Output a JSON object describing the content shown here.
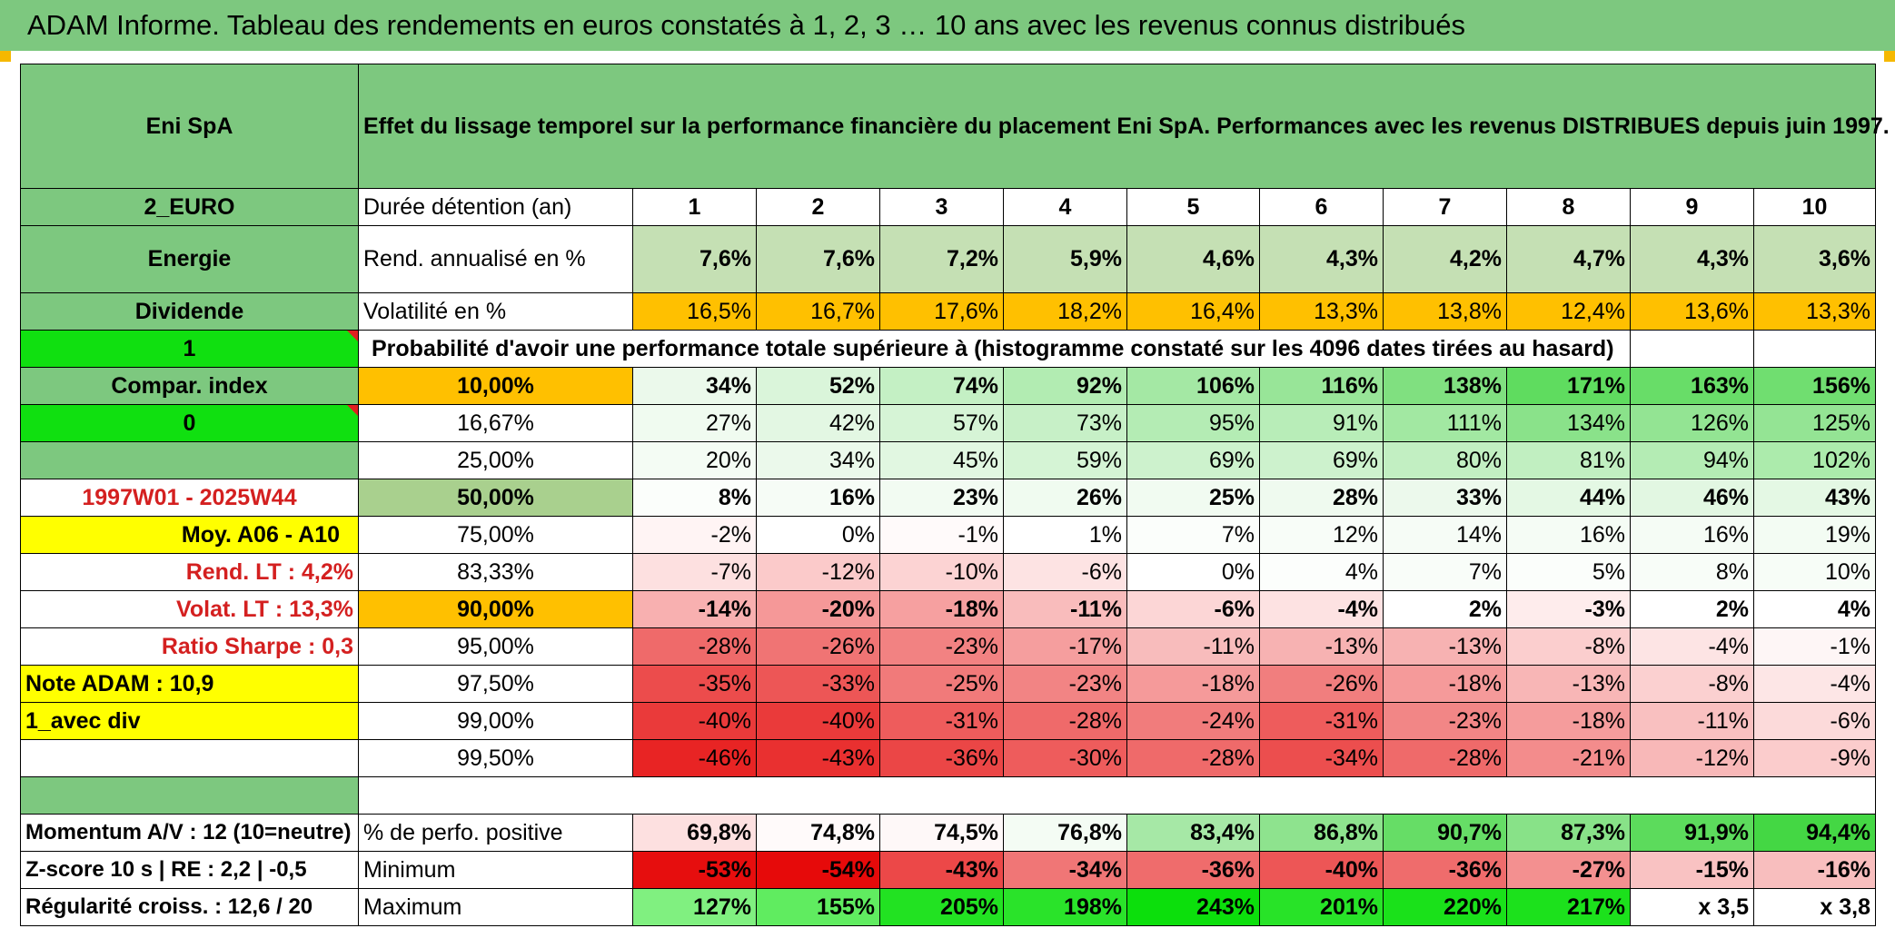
{
  "title": "ADAM Informe. Tableau des rendements en euros constatés à 1, 2, 3 … 10 ans avec les revenus connus distribués",
  "colors": {
    "header_green": "#7dc87f",
    "orange": "#ffc000",
    "yellow": "#ffff00",
    "bright_green": "#10e010",
    "red_text": "#d42020"
  },
  "left": {
    "company": "Eni SpA",
    "currency": "2_EURO",
    "sector": "Energie",
    "dividend": "Dividende",
    "one": "1",
    "compar_index": "Compar. index",
    "zero": "0",
    "period": "1997W01 - 2025W44",
    "moy": "Moy. A06 - A10",
    "rend_lt": "Rend. LT :    4,2%",
    "volat_lt": "Volat. LT :    13,3%",
    "ratio_sharpe": "Ratio Sharpe :    0,3",
    "note_adam": "Note ADAM : 10,9",
    "avec_div": "1_avec div",
    "momentum": "Momentum A/V : 12 (10=neutre)",
    "zscore": "Z-score 10 s | RE : 2,2 | -0,5",
    "regularite": "Régularité croiss. : 12,6 / 20"
  },
  "header_text": "Effet du lissage temporel sur la performance financière du placement Eni SpA. Performances avec les revenus DISTRIBUES depuis juin 1997.",
  "duration_label": "Durée détention (an)",
  "years": [
    "1",
    "2",
    "3",
    "4",
    "5",
    "6",
    "7",
    "8",
    "9",
    "10"
  ],
  "rend_label": "Rend. annualisé en %",
  "rend": [
    "7,6%",
    "7,6%",
    "7,2%",
    "5,9%",
    "4,6%",
    "4,3%",
    "4,2%",
    "4,7%",
    "4,3%",
    "3,6%"
  ],
  "vol_label": "Volatilité en %",
  "vol": [
    "16,5%",
    "16,7%",
    "17,6%",
    "18,2%",
    "16,4%",
    "13,3%",
    "13,8%",
    "12,4%",
    "13,6%",
    "13,3%"
  ],
  "prob_label": "Probabilité d'avoir une performance totale supérieure à (histogramme constaté sur les 4096 dates tirées au hasard)",
  "prob_rows": [
    {
      "label": "10,00%",
      "values": [
        "34%",
        "52%",
        "74%",
        "92%",
        "106%",
        "116%",
        "138%",
        "171%",
        "163%",
        "156%"
      ]
    },
    {
      "label": "16,67%",
      "values": [
        "27%",
        "42%",
        "57%",
        "73%",
        "95%",
        "91%",
        "111%",
        "134%",
        "126%",
        "125%"
      ]
    },
    {
      "label": "25,00%",
      "values": [
        "20%",
        "34%",
        "45%",
        "59%",
        "69%",
        "69%",
        "80%",
        "81%",
        "94%",
        "102%"
      ]
    },
    {
      "label": "50,00%",
      "values": [
        "8%",
        "16%",
        "23%",
        "26%",
        "25%",
        "28%",
        "33%",
        "44%",
        "46%",
        "43%"
      ]
    },
    {
      "label": "75,00%",
      "values": [
        "-2%",
        "0%",
        "-1%",
        "1%",
        "7%",
        "12%",
        "14%",
        "16%",
        "16%",
        "19%"
      ]
    },
    {
      "label": "83,33%",
      "values": [
        "-7%",
        "-12%",
        "-10%",
        "-6%",
        "0%",
        "4%",
        "7%",
        "5%",
        "8%",
        "10%"
      ]
    },
    {
      "label": "90,00%",
      "values": [
        "-14%",
        "-20%",
        "-18%",
        "-11%",
        "-6%",
        "-4%",
        "2%",
        "-3%",
        "2%",
        "4%"
      ]
    },
    {
      "label": "95,00%",
      "values": [
        "-28%",
        "-26%",
        "-23%",
        "-17%",
        "-11%",
        "-13%",
        "-13%",
        "-8%",
        "-4%",
        "-1%"
      ]
    },
    {
      "label": "97,50%",
      "values": [
        "-35%",
        "-33%",
        "-25%",
        "-23%",
        "-18%",
        "-26%",
        "-18%",
        "-13%",
        "-8%",
        "-4%"
      ]
    },
    {
      "label": "99,00%",
      "values": [
        "-40%",
        "-40%",
        "-31%",
        "-28%",
        "-24%",
        "-31%",
        "-23%",
        "-18%",
        "-11%",
        "-6%"
      ]
    },
    {
      "label": "99,50%",
      "values": [
        "-46%",
        "-43%",
        "-36%",
        "-30%",
        "-28%",
        "-34%",
        "-28%",
        "-21%",
        "-12%",
        "-9%"
      ]
    }
  ],
  "pos_label": "% de perfo. positive",
  "pos": [
    "69,8%",
    "74,8%",
    "74,5%",
    "76,8%",
    "83,4%",
    "86,8%",
    "90,7%",
    "87,3%",
    "91,9%",
    "94,4%"
  ],
  "min_label": "Minimum",
  "min": [
    "-53%",
    "-54%",
    "-43%",
    "-34%",
    "-36%",
    "-40%",
    "-36%",
    "-27%",
    "-15%",
    "-16%"
  ],
  "max_label": "Maximum",
  "max": [
    "127%",
    "155%",
    "205%",
    "198%",
    "243%",
    "201%",
    "220%",
    "217%",
    "x 3,5",
    "x 3,8"
  ]
}
